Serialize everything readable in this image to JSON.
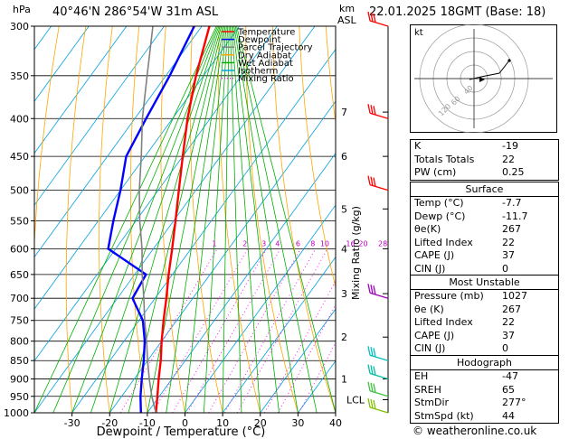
{
  "header": {
    "hpa_label": "hPa",
    "location": "40°46'N  286°54'W  31m  ASL",
    "km_label": "km",
    "asl_label": "ASL",
    "datetime": "22.01.2025  18GMT  (Base: 18)"
  },
  "chart_data": {
    "type": "line",
    "subtype": "skew-T log-P sounding",
    "xlabel": "Dewpoint / Temperature (°C)",
    "ylabel_right": "Mixing Ratio (g/kg)",
    "x_ticks": [
      -30,
      -20,
      -10,
      0,
      10,
      20,
      30,
      40
    ],
    "x_tick_labels": [
      "-30",
      "-20",
      "-10",
      "0",
      "10",
      "20",
      "30",
      "40"
    ],
    "xlim": [
      -40,
      40
    ],
    "ylim_hpa": [
      1000,
      300
    ],
    "pressure_ticks": [
      300,
      350,
      400,
      450,
      500,
      550,
      600,
      650,
      700,
      750,
      800,
      850,
      900,
      950,
      1000
    ],
    "pressure_tick_labels": [
      "300",
      "350",
      "400",
      "450",
      "500",
      "550",
      "600",
      "650",
      "700",
      "750",
      "800",
      "850",
      "900",
      "950",
      "1000"
    ],
    "km_ticks": [
      {
        "label": "7",
        "hpa": 392
      },
      {
        "label": "6",
        "hpa": 450
      },
      {
        "label": "5",
        "hpa": 530
      },
      {
        "label": "4",
        "hpa": 600
      },
      {
        "label": "3",
        "hpa": 690
      },
      {
        "label": "2",
        "hpa": 790
      },
      {
        "label": "1",
        "hpa": 900
      },
      {
        "label": "LCL",
        "hpa": 960
      }
    ],
    "mixing_ratio_labels": [
      "1",
      "2",
      "3",
      "4",
      "6",
      "8",
      "10",
      "16",
      "20",
      "28"
    ],
    "mixing_ratio_values": [
      1,
      2,
      3,
      4,
      6,
      8,
      10,
      16,
      20,
      28
    ],
    "legend": {
      "placement": "top-center",
      "entries": [
        {
          "name": "Temperature",
          "color": "#ff0000",
          "dash": false
        },
        {
          "name": "Dewpoint",
          "color": "#0000ff",
          "dash": false
        },
        {
          "name": "Parcel Trajectory",
          "color": "#808080",
          "dash": false
        },
        {
          "name": "Dry Adiabat",
          "color": "#ffa500",
          "dash": false
        },
        {
          "name": "Wet Adiabat",
          "color": "#00b000",
          "dash": false
        },
        {
          "name": "Isotherm",
          "color": "#00a0e0",
          "dash": false
        },
        {
          "name": "Mixing Ratio",
          "color": "#ff00ff",
          "dash": true
        }
      ]
    },
    "series": [
      {
        "name": "Temperature",
        "color": "#ff0000",
        "points": [
          [
            1000,
            -7.7
          ],
          [
            950,
            -10.5
          ],
          [
            900,
            -13.5
          ],
          [
            850,
            -16.5
          ],
          [
            800,
            -20
          ],
          [
            750,
            -23.5
          ],
          [
            700,
            -27
          ],
          [
            650,
            -31
          ],
          [
            600,
            -35
          ],
          [
            550,
            -39.5
          ],
          [
            500,
            -44.5
          ],
          [
            450,
            -50
          ],
          [
            400,
            -56
          ],
          [
            350,
            -62
          ],
          [
            300,
            -68
          ]
        ]
      },
      {
        "name": "Dewpoint",
        "color": "#0000ff",
        "points": [
          [
            1000,
            -11.7
          ],
          [
            950,
            -15
          ],
          [
            900,
            -18
          ],
          [
            850,
            -21
          ],
          [
            800,
            -24.5
          ],
          [
            750,
            -29
          ],
          [
            700,
            -36
          ],
          [
            650,
            -37
          ],
          [
            600,
            -52
          ],
          [
            550,
            -56
          ],
          [
            500,
            -60
          ],
          [
            450,
            -65
          ],
          [
            400,
            -67
          ],
          [
            350,
            -69
          ],
          [
            300,
            -72
          ]
        ]
      },
      {
        "name": "Parcel Trajectory",
        "color": "#808080",
        "points": [
          [
            1000,
            -7.7
          ],
          [
            950,
            -12
          ],
          [
            900,
            -16
          ],
          [
            850,
            -20
          ],
          [
            800,
            -24
          ],
          [
            750,
            -28.5
          ],
          [
            700,
            -33
          ],
          [
            650,
            -38
          ],
          [
            600,
            -43
          ],
          [
            550,
            -49
          ],
          [
            500,
            -55
          ],
          [
            450,
            -61
          ],
          [
            400,
            -68
          ],
          [
            350,
            -75
          ],
          [
            300,
            -83
          ]
        ]
      }
    ],
    "wind_barbs": [
      {
        "hpa": 300,
        "color": "#ff0000"
      },
      {
        "hpa": 400,
        "color": "#ff0000"
      },
      {
        "hpa": 500,
        "color": "#ff0000"
      },
      {
        "hpa": 700,
        "color": "#a000c0"
      },
      {
        "hpa": 850,
        "color": "#00c0c0"
      },
      {
        "hpa": 900,
        "color": "#00c0a0"
      },
      {
        "hpa": 950,
        "color": "#40c040"
      },
      {
        "hpa": 1000,
        "color": "#80c000"
      }
    ],
    "grid": true
  },
  "hodograph": {
    "unit_label": "kt",
    "ring_labels": [
      "40",
      "60",
      "120"
    ]
  },
  "indices": {
    "rows": [
      {
        "label": "K",
        "value": "-19"
      },
      {
        "label": "Totals Totals",
        "value": "22"
      },
      {
        "label": "PW (cm)",
        "value": "0.25"
      }
    ]
  },
  "surface": {
    "title": "Surface",
    "rows": [
      {
        "label": "Temp (°C)",
        "value": "-7.7"
      },
      {
        "label": "Dewp (°C)",
        "value": "-11.7"
      },
      {
        "label": "θe(K)",
        "value": "267"
      },
      {
        "label": "Lifted Index",
        "value": "22"
      },
      {
        "label": "CAPE (J)",
        "value": "37"
      },
      {
        "label": "CIN (J)",
        "value": "0"
      }
    ]
  },
  "most_unstable": {
    "title": "Most Unstable",
    "rows": [
      {
        "label": "Pressure (mb)",
        "value": "1027"
      },
      {
        "label": "θe (K)",
        "value": "267"
      },
      {
        "label": "Lifted Index",
        "value": "22"
      },
      {
        "label": "CAPE (J)",
        "value": "37"
      },
      {
        "label": "CIN (J)",
        "value": "0"
      }
    ]
  },
  "hodograph_table": {
    "title": "Hodograph",
    "rows": [
      {
        "label": "EH",
        "value": "-47"
      },
      {
        "label": "SREH",
        "value": "65"
      },
      {
        "label": "StmDir",
        "value": "277°"
      },
      {
        "label": "StmSpd (kt)",
        "value": "44"
      }
    ]
  },
  "footer": {
    "copyright": "© weatheronline.co.uk"
  }
}
